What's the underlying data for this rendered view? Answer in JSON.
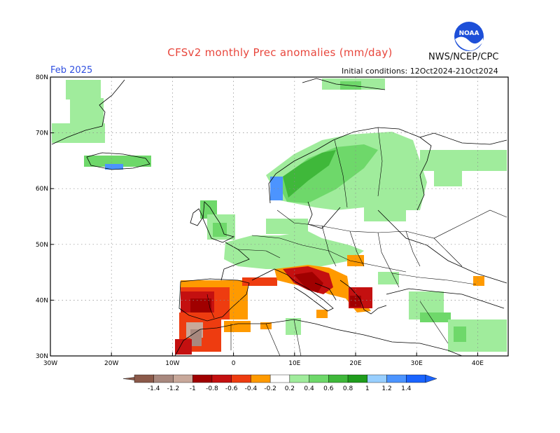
{
  "title": "CFSv2 monthly Prec anomalies (mm/day)",
  "agency": "NWS/NCEP/CPC",
  "logo_text": "NOAA",
  "month": "Feb 2025",
  "initial_conditions": "Initial conditions: 12Oct2024-21Oct2024",
  "map": {
    "lon_range": [
      -30,
      45
    ],
    "lat_range": [
      30,
      80
    ],
    "lon_ticks": [
      "30W",
      "20W",
      "10W",
      "0",
      "10E",
      "20E",
      "30E",
      "40E"
    ],
    "lat_ticks": [
      "30N",
      "40N",
      "50N",
      "60N",
      "70N",
      "80N"
    ]
  },
  "colorbar": {
    "labels": [
      "-1.4",
      "-1.2",
      "-1",
      "-0.8",
      "-0.6",
      "-0.4",
      "-0.2",
      "0.2",
      "0.4",
      "0.6",
      "0.8",
      "1",
      "1.2",
      "1.4"
    ],
    "colors": [
      "#8b5a4a",
      "#a8887e",
      "#c8a89a",
      "#a00000",
      "#c41010",
      "#ee3c10",
      "#ff9a00",
      "#ffffff",
      "#a0ec9c",
      "#6ed86a",
      "#3fb83a",
      "#1f9c1c",
      "#98cfff",
      "#4c94ff",
      "#1a64ff"
    ]
  },
  "regions": [
    {
      "name": "iberia-dry",
      "color": "#c41010"
    },
    {
      "name": "italy-dry",
      "color": "#c41010"
    },
    {
      "name": "scandinavia-wet",
      "color": "#6ed86a"
    },
    {
      "name": "norway-very-wet",
      "color": "#4c94ff"
    }
  ]
}
